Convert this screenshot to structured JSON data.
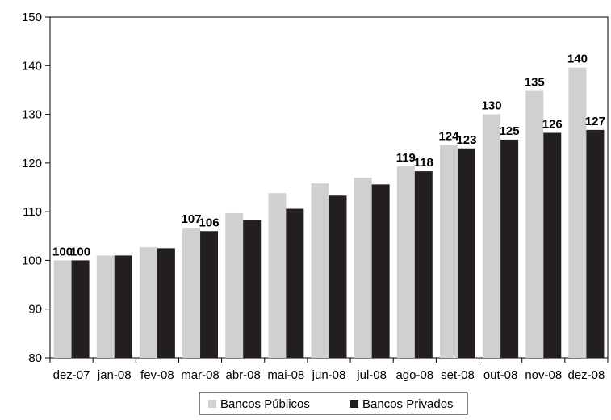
{
  "chart_data": {
    "type": "bar",
    "title": "",
    "xlabel": "",
    "ylabel": "",
    "ylim": [
      80,
      150
    ],
    "yticks": [
      "80",
      "90",
      "100",
      "110",
      "120",
      "130",
      "140",
      "150"
    ],
    "grid": false,
    "legend_position": "bottom",
    "categories": [
      "dez-07",
      "jan-08",
      "fev-08",
      "mar-08",
      "abr-08",
      "mai-08",
      "jun-08",
      "jul-08",
      "ago-08",
      "set-08",
      "out-08",
      "nov-08",
      "dez-08"
    ],
    "series": [
      {
        "name": "Bancos Públicos",
        "color": "#d0d0d0",
        "values": [
          100,
          101,
          102.7,
          106.7,
          109.7,
          113.8,
          115.8,
          117,
          119.3,
          123.7,
          130,
          134.8,
          139.6
        ],
        "data_labels": [
          "100",
          "",
          "",
          "107",
          "",
          "",
          "",
          "",
          "119",
          "124",
          "130",
          "135",
          "140"
        ]
      },
      {
        "name": "Bancos Privados",
        "color": "#231f20",
        "values": [
          100,
          101,
          102.5,
          106,
          108.3,
          110.6,
          113.3,
          115.6,
          118.3,
          123,
          124.8,
          126.2,
          126.8
        ],
        "data_labels": [
          "100",
          "",
          "",
          "106",
          "",
          "",
          "",
          "",
          "118",
          "123",
          "125",
          "126",
          "127"
        ]
      }
    ]
  }
}
